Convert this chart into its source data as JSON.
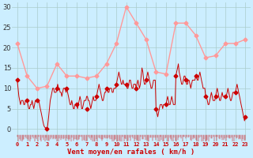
{
  "background_color": "#cceeff",
  "grid_color": "#aacccc",
  "ylabel_ticks": [
    0,
    5,
    10,
    15,
    20,
    25,
    30
  ],
  "ylim": [
    -3,
    31
  ],
  "xlim": [
    -0.5,
    23.5
  ],
  "xlabel": "Vent moyen/en rafales ( km/h )",
  "xlabel_color": "#cc0000",
  "light_color": "#ff9999",
  "dark_color": "#cc0000",
  "wind_avg_x": [
    0,
    1,
    2,
    3,
    4,
    5,
    6,
    7,
    8,
    9,
    10,
    11,
    12,
    13,
    14,
    15,
    16,
    17,
    18,
    19,
    20,
    21,
    22,
    23
  ],
  "wind_avg_y": [
    21,
    13,
    10,
    10.5,
    16,
    13,
    13,
    12.5,
    13,
    16,
    21,
    30,
    26,
    22,
    14,
    13.5,
    26,
    26,
    23,
    17.5,
    18,
    21,
    21,
    22
  ],
  "wind_gust_x": [
    0,
    1,
    2,
    3,
    4,
    5,
    6,
    7,
    8,
    9,
    10,
    11,
    12,
    13,
    14,
    15,
    16,
    17,
    18,
    19,
    20,
    21,
    22,
    23
  ],
  "wind_gust_y": [
    12,
    7,
    7,
    0,
    10,
    10,
    6,
    5,
    8,
    10,
    11,
    11,
    10,
    12,
    5,
    6,
    13,
    12,
    13,
    8,
    8,
    8,
    9,
    3
  ],
  "wind_dense_x_step": 0.083,
  "wind_dense_segments": [
    [
      0,
      12
    ],
    [
      0.083,
      10
    ],
    [
      0.17,
      8
    ],
    [
      0.25,
      7
    ],
    [
      0.33,
      6
    ],
    [
      0.42,
      7
    ],
    [
      0.5,
      7
    ],
    [
      0.58,
      7
    ],
    [
      0.67,
      6
    ],
    [
      0.75,
      6
    ],
    [
      0.83,
      7
    ],
    [
      0.92,
      7
    ],
    [
      1.0,
      7
    ],
    [
      1.08,
      6
    ],
    [
      1.17,
      5
    ],
    [
      1.25,
      5
    ],
    [
      1.33,
      6
    ],
    [
      1.42,
      6
    ],
    [
      1.5,
      7
    ],
    [
      1.58,
      6
    ],
    [
      1.67,
      5
    ],
    [
      1.75,
      6
    ],
    [
      1.83,
      7
    ],
    [
      1.92,
      7
    ],
    [
      2.0,
      7
    ],
    [
      2.08,
      7
    ],
    [
      2.17,
      7
    ],
    [
      2.25,
      6
    ],
    [
      2.33,
      5
    ],
    [
      2.42,
      4
    ],
    [
      2.5,
      3
    ],
    [
      2.58,
      2
    ],
    [
      2.67,
      1
    ],
    [
      2.75,
      0.5
    ],
    [
      3.0,
      0
    ],
    [
      3.08,
      1
    ],
    [
      3.17,
      3
    ],
    [
      3.25,
      5
    ],
    [
      3.33,
      7
    ],
    [
      3.42,
      8
    ],
    [
      3.5,
      9
    ],
    [
      3.58,
      10
    ],
    [
      3.67,
      10
    ],
    [
      3.75,
      9
    ],
    [
      3.83,
      9
    ],
    [
      3.92,
      9
    ],
    [
      4.0,
      10
    ],
    [
      4.08,
      11
    ],
    [
      4.17,
      10
    ],
    [
      4.25,
      10
    ],
    [
      4.33,
      9
    ],
    [
      4.42,
      9
    ],
    [
      4.5,
      8
    ],
    [
      4.58,
      9
    ],
    [
      4.67,
      10
    ],
    [
      4.75,
      10
    ],
    [
      4.83,
      10
    ],
    [
      4.92,
      9
    ],
    [
      5.0,
      10
    ],
    [
      5.08,
      9
    ],
    [
      5.17,
      8
    ],
    [
      5.25,
      7
    ],
    [
      5.33,
      6
    ],
    [
      5.42,
      6
    ],
    [
      5.5,
      7
    ],
    [
      5.58,
      6
    ],
    [
      5.67,
      5
    ],
    [
      5.75,
      5
    ],
    [
      5.83,
      6
    ],
    [
      5.92,
      6
    ],
    [
      6.0,
      6
    ],
    [
      6.08,
      5
    ],
    [
      6.17,
      6
    ],
    [
      6.25,
      7
    ],
    [
      6.33,
      8
    ],
    [
      6.42,
      7
    ],
    [
      6.5,
      5
    ],
    [
      6.58,
      5
    ],
    [
      6.67,
      6
    ],
    [
      6.75,
      7
    ],
    [
      6.83,
      7
    ],
    [
      6.92,
      7
    ],
    [
      7.0,
      8
    ],
    [
      7.08,
      8
    ],
    [
      7.17,
      7
    ],
    [
      7.25,
      7
    ],
    [
      7.33,
      6
    ],
    [
      7.42,
      5
    ],
    [
      7.5,
      6
    ],
    [
      7.58,
      7
    ],
    [
      7.67,
      8
    ],
    [
      7.75,
      7
    ],
    [
      7.83,
      7
    ],
    [
      7.92,
      7
    ],
    [
      8.0,
      8
    ],
    [
      8.08,
      9
    ],
    [
      8.17,
      10
    ],
    [
      8.25,
      11
    ],
    [
      8.33,
      10
    ],
    [
      8.42,
      9
    ],
    [
      8.5,
      8
    ],
    [
      8.58,
      7
    ],
    [
      8.67,
      7
    ],
    [
      8.75,
      8
    ],
    [
      8.83,
      9
    ],
    [
      8.92,
      9
    ],
    [
      9.0,
      10
    ],
    [
      9.08,
      10
    ],
    [
      9.17,
      9
    ],
    [
      9.25,
      9
    ],
    [
      9.33,
      10
    ],
    [
      9.42,
      10
    ],
    [
      9.5,
      10
    ],
    [
      9.58,
      9
    ],
    [
      9.67,
      9
    ],
    [
      9.75,
      10
    ],
    [
      9.83,
      10
    ],
    [
      9.92,
      10
    ],
    [
      10.0,
      11
    ],
    [
      10.08,
      12
    ],
    [
      10.17,
      13
    ],
    [
      10.25,
      14
    ],
    [
      10.33,
      13
    ],
    [
      10.42,
      12
    ],
    [
      10.5,
      11
    ],
    [
      10.58,
      11
    ],
    [
      10.67,
      12
    ],
    [
      10.75,
      11
    ],
    [
      10.83,
      11
    ],
    [
      10.92,
      11
    ],
    [
      11.0,
      11
    ],
    [
      11.08,
      10
    ],
    [
      11.17,
      10
    ],
    [
      11.25,
      11
    ],
    [
      11.33,
      12
    ],
    [
      11.42,
      12
    ],
    [
      11.5,
      11
    ],
    [
      11.58,
      10
    ],
    [
      11.67,
      10
    ],
    [
      11.75,
      11
    ],
    [
      11.83,
      11
    ],
    [
      11.92,
      11
    ],
    [
      12.0,
      10
    ],
    [
      12.08,
      11
    ],
    [
      12.17,
      12
    ],
    [
      12.25,
      11
    ],
    [
      12.33,
      10
    ],
    [
      12.42,
      11
    ],
    [
      12.5,
      13
    ],
    [
      12.58,
      15
    ],
    [
      12.67,
      14
    ],
    [
      12.75,
      12
    ],
    [
      12.83,
      11
    ],
    [
      12.92,
      11
    ],
    [
      13.0,
      12
    ],
    [
      13.08,
      13
    ],
    [
      13.17,
      14
    ],
    [
      13.25,
      13
    ],
    [
      13.33,
      12
    ],
    [
      13.42,
      11
    ],
    [
      13.5,
      10
    ],
    [
      13.58,
      10
    ],
    [
      13.67,
      11
    ],
    [
      13.75,
      12
    ],
    [
      13.83,
      12
    ],
    [
      13.92,
      12
    ],
    [
      14.0,
      5
    ],
    [
      14.08,
      4
    ],
    [
      14.17,
      3
    ],
    [
      14.25,
      4
    ],
    [
      14.33,
      5
    ],
    [
      14.42,
      6
    ],
    [
      14.5,
      6
    ],
    [
      14.58,
      6
    ],
    [
      14.67,
      5
    ],
    [
      14.75,
      6
    ],
    [
      14.83,
      6
    ],
    [
      14.92,
      6
    ],
    [
      15.0,
      6
    ],
    [
      15.08,
      7
    ],
    [
      15.17,
      8
    ],
    [
      15.25,
      7
    ],
    [
      15.33,
      6
    ],
    [
      15.42,
      6
    ],
    [
      15.5,
      7
    ],
    [
      15.58,
      8
    ],
    [
      15.67,
      7
    ],
    [
      15.75,
      6
    ],
    [
      15.83,
      6
    ],
    [
      15.92,
      6
    ],
    [
      16.0,
      13
    ],
    [
      16.08,
      14
    ],
    [
      16.17,
      15
    ],
    [
      16.25,
      16
    ],
    [
      16.33,
      14
    ],
    [
      16.42,
      13
    ],
    [
      16.5,
      12
    ],
    [
      16.58,
      11
    ],
    [
      16.67,
      11
    ],
    [
      16.75,
      12
    ],
    [
      16.83,
      13
    ],
    [
      16.92,
      13
    ],
    [
      17.0,
      12
    ],
    [
      17.08,
      11
    ],
    [
      17.17,
      11
    ],
    [
      17.25,
      12
    ],
    [
      17.33,
      12
    ],
    [
      17.42,
      11
    ],
    [
      17.5,
      10
    ],
    [
      17.58,
      11
    ],
    [
      17.67,
      12
    ],
    [
      17.75,
      12
    ],
    [
      17.83,
      12
    ],
    [
      17.92,
      12
    ],
    [
      18.0,
      13
    ],
    [
      18.08,
      13
    ],
    [
      18.17,
      12
    ],
    [
      18.25,
      12
    ],
    [
      18.33,
      13
    ],
    [
      18.42,
      14
    ],
    [
      18.5,
      13
    ],
    [
      18.58,
      12
    ],
    [
      18.67,
      11
    ],
    [
      18.75,
      10
    ],
    [
      18.83,
      10
    ],
    [
      18.92,
      10
    ],
    [
      19.0,
      8
    ],
    [
      19.08,
      8
    ],
    [
      19.17,
      7
    ],
    [
      19.25,
      6
    ],
    [
      19.33,
      6
    ],
    [
      19.42,
      7
    ],
    [
      19.5,
      8
    ],
    [
      19.58,
      9
    ],
    [
      19.67,
      8
    ],
    [
      19.75,
      7
    ],
    [
      19.83,
      7
    ],
    [
      19.92,
      7
    ],
    [
      20.0,
      8
    ],
    [
      20.08,
      9
    ],
    [
      20.17,
      10
    ],
    [
      20.25,
      9
    ],
    [
      20.33,
      8
    ],
    [
      20.42,
      7
    ],
    [
      20.5,
      7
    ],
    [
      20.58,
      8
    ],
    [
      20.67,
      9
    ],
    [
      20.75,
      8
    ],
    [
      20.83,
      8
    ],
    [
      20.92,
      8
    ],
    [
      21.0,
      8
    ],
    [
      21.08,
      8
    ],
    [
      21.17,
      9
    ],
    [
      21.25,
      10
    ],
    [
      21.33,
      9
    ],
    [
      21.42,
      8
    ],
    [
      21.5,
      7
    ],
    [
      21.58,
      7
    ],
    [
      21.67,
      8
    ],
    [
      21.75,
      9
    ],
    [
      21.83,
      9
    ],
    [
      21.92,
      9
    ],
    [
      22.0,
      9
    ],
    [
      22.08,
      10
    ],
    [
      22.17,
      11
    ],
    [
      22.25,
      10
    ],
    [
      22.33,
      9
    ],
    [
      22.42,
      8
    ],
    [
      22.5,
      7
    ],
    [
      22.58,
      6
    ],
    [
      22.67,
      5
    ],
    [
      22.75,
      4
    ],
    [
      22.83,
      3
    ],
    [
      22.92,
      2
    ],
    [
      23.0,
      3
    ]
  ]
}
